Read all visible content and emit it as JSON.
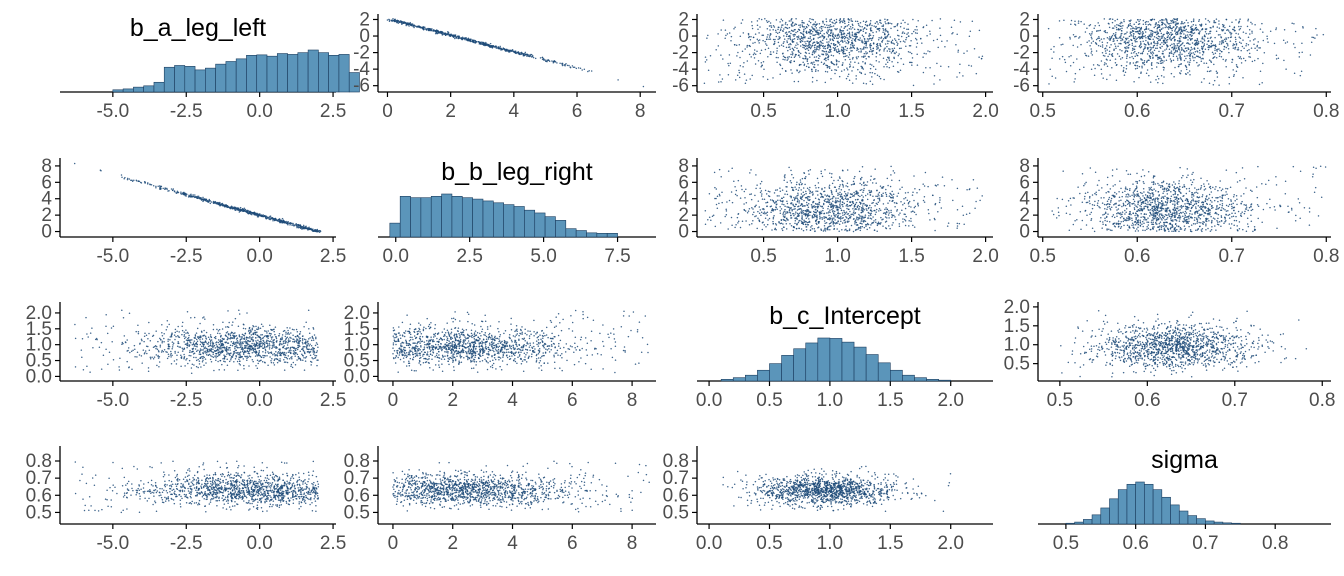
{
  "chart_data": {
    "type": "pairs",
    "grid": false,
    "colors": {
      "hist_fill": "#5b95ba",
      "hist_edge": "#1a3c5e",
      "point": "#1e4b79",
      "axis": "#000000",
      "tick_text": "#4d4d4d"
    },
    "variables": [
      "b_a_leg_left",
      "b_b_leg_right",
      "b_c_Intercept",
      "sigma"
    ],
    "panels": [
      {
        "row": 0,
        "col": 0,
        "kind": "hist",
        "title": "b_a_leg_left",
        "xlim": [
          -6.8,
          2.6
        ],
        "xticks": [
          "-5.0",
          "-2.5",
          "0.0",
          "2.5"
        ],
        "bin_start": -5.0,
        "bin_width": 0.35,
        "counts": [
          5,
          7,
          11,
          14,
          22,
          56,
          60,
          58,
          50,
          54,
          63,
          69,
          75,
          83,
          84,
          81,
          87,
          85,
          89,
          95,
          89,
          83,
          85,
          44
        ]
      },
      {
        "row": 0,
        "col": 1,
        "kind": "scatter",
        "xlim": [
          -0.3,
          8.5
        ],
        "ylim": [
          -6.4,
          2.3
        ],
        "xticks": [
          "0",
          "2",
          "4",
          "6",
          "8"
        ],
        "yticks": [
          "2",
          "0",
          "-2",
          "-4",
          "-6"
        ],
        "trend": {
          "x": [
            0.1,
            6.5
          ],
          "y": [
            2.0,
            -4.4
          ]
        },
        "x_sd": 1.6,
        "x_mean": 2.4,
        "noise": [
          0.07,
          0.07
        ],
        "n": 650,
        "extra_points": [
          {
            "x": 7.3,
            "y": -5.3
          },
          {
            "x": 8.1,
            "y": -6.1
          }
        ]
      },
      {
        "row": 0,
        "col": 2,
        "kind": "scatter",
        "xlim": [
          0.05,
          2.05
        ],
        "ylim": [
          -6.4,
          2.3
        ],
        "xticks": [
          "0.5",
          "1.0",
          "1.5",
          "2.0"
        ],
        "yticks": [
          "2",
          "0",
          "-2",
          "-4",
          "-6"
        ],
        "center": [
          0.95,
          -0.3
        ],
        "spread": [
          0.3,
          2.0
        ],
        "range_x": [
          0.1,
          1.98
        ],
        "range_y": [
          -6.0,
          2.1
        ],
        "n": 1300
      },
      {
        "row": 0,
        "col": 3,
        "kind": "scatter",
        "xlim": [
          0.495,
          0.805
        ],
        "ylim": [
          -6.4,
          2.3
        ],
        "xticks": [
          "0.5",
          "0.6",
          "0.7",
          "0.8"
        ],
        "yticks": [
          "2",
          "0",
          "-2",
          "-4",
          "-6"
        ],
        "center": [
          0.63,
          -0.3
        ],
        "spread": [
          0.045,
          2.0
        ],
        "range_x": [
          0.505,
          0.8
        ],
        "range_y": [
          -6.0,
          2.1
        ],
        "n": 1300
      },
      {
        "row": 1,
        "col": 0,
        "kind": "scatter",
        "xlim": [
          -6.8,
          2.6
        ],
        "ylim": [
          -0.3,
          8.6
        ],
        "xticks": [
          "-5.0",
          "-2.5",
          "0.0",
          "2.5"
        ],
        "yticks": [
          "8",
          "6",
          "4",
          "2",
          "0"
        ],
        "trend": {
          "x": [
            -5.6,
            2.0
          ],
          "y": [
            7.6,
            0.0
          ]
        },
        "x_sd": 1.8,
        "x_mean": -0.4,
        "noise": [
          0.07,
          0.07
        ],
        "n": 650,
        "extra_points": [
          {
            "x": -6.3,
            "y": 8.3
          }
        ]
      },
      {
        "row": 1,
        "col": 1,
        "kind": "hist",
        "title": "b_b_leg_right",
        "xlim": [
          -0.6,
          8.8
        ],
        "xticks": [
          "0.0",
          "2.5",
          "5.0",
          "7.5"
        ],
        "bin_start": -0.2,
        "bin_width": 0.35,
        "counts": [
          30,
          88,
          85,
          85,
          88,
          93,
          88,
          85,
          82,
          78,
          74,
          70,
          66,
          58,
          52,
          44,
          36,
          18,
          14,
          9,
          8,
          8
        ]
      },
      {
        "row": 1,
        "col": 2,
        "kind": "scatter",
        "xlim": [
          0.05,
          2.05
        ],
        "ylim": [
          -0.3,
          8.6
        ],
        "xticks": [
          "0.5",
          "1.0",
          "1.5",
          "2.0"
        ],
        "yticks": [
          "8",
          "6",
          "4",
          "2",
          "0"
        ],
        "center": [
          0.95,
          2.6
        ],
        "spread": [
          0.3,
          1.9
        ],
        "range_x": [
          0.1,
          1.98
        ],
        "range_y": [
          0.0,
          8.0
        ],
        "n": 1300
      },
      {
        "row": 1,
        "col": 3,
        "kind": "scatter",
        "xlim": [
          0.495,
          0.805
        ],
        "ylim": [
          -0.3,
          8.6
        ],
        "xticks": [
          "0.5",
          "0.6",
          "0.7",
          "0.8"
        ],
        "yticks": [
          "8",
          "6",
          "4",
          "2",
          "0"
        ],
        "center": [
          0.63,
          2.6
        ],
        "spread": [
          0.045,
          1.9
        ],
        "range_x": [
          0.505,
          0.8
        ],
        "range_y": [
          0.0,
          8.0
        ],
        "n": 1300
      },
      {
        "row": 2,
        "col": 0,
        "kind": "scatter",
        "xlim": [
          -6.8,
          2.6
        ],
        "ylim": [
          -0.05,
          2.25
        ],
        "xticks": [
          "-5.0",
          "-2.5",
          "0.0",
          "2.5"
        ],
        "yticks": [
          "2.0",
          "1.5",
          "1.0",
          "0.5",
          "0.0"
        ],
        "center": [
          -0.4,
          0.95
        ],
        "spread": [
          1.8,
          0.3
        ],
        "range_x": [
          -6.3,
          2.0
        ],
        "range_y": [
          0.1,
          2.1
        ],
        "n": 1300
      },
      {
        "row": 2,
        "col": 1,
        "kind": "scatter",
        "xlim": [
          -0.5,
          8.8
        ],
        "ylim": [
          -0.05,
          2.25
        ],
        "xticks": [
          "0",
          "2",
          "4",
          "6",
          "8"
        ],
        "yticks": [
          "2.0",
          "1.5",
          "1.0",
          "0.5",
          "0.0"
        ],
        "center": [
          2.4,
          0.95
        ],
        "spread": [
          1.8,
          0.3
        ],
        "range_x": [
          0.0,
          8.6
        ],
        "range_y": [
          0.1,
          2.1
        ],
        "n": 1300
      },
      {
        "row": 2,
        "col": 2,
        "kind": "hist",
        "title": "b_c_Intercept",
        "xlim": [
          -0.1,
          2.35
        ],
        "xticks": [
          "0.0",
          "0.5",
          "1.0",
          "1.5",
          "2.0"
        ],
        "bin_start": 0.1,
        "bin_width": 0.1,
        "counts": [
          4,
          8,
          14,
          26,
          42,
          62,
          78,
          92,
          104,
          103,
          94,
          82,
          64,
          44,
          26,
          14,
          8,
          4,
          2
        ]
      },
      {
        "row": 2,
        "col": 3,
        "kind": "scatter",
        "xlim": [
          0.475,
          0.81
        ],
        "ylim": [
          0.12,
          2.05
        ],
        "xticks": [
          "0.5",
          "0.6",
          "0.7",
          "0.8"
        ],
        "yticks": [
          "2.0",
          "1.5",
          "1.0",
          "0.5"
        ],
        "center": [
          0.63,
          0.95
        ],
        "spread": [
          0.045,
          0.3
        ],
        "range_x": [
          0.5,
          0.8
        ],
        "range_y": [
          0.15,
          1.95
        ],
        "n": 1300
      },
      {
        "row": 3,
        "col": 0,
        "kind": "scatter",
        "xlim": [
          -6.8,
          2.6
        ],
        "ylim": [
          0.45,
          0.87
        ],
        "xticks": [
          "-5.0",
          "-2.5",
          "0.0",
          "2.5"
        ],
        "yticks": [
          "0.8",
          "0.7",
          "0.6",
          "0.5"
        ],
        "center": [
          -0.4,
          0.63
        ],
        "spread": [
          1.8,
          0.045
        ],
        "range_x": [
          -6.3,
          2.0
        ],
        "range_y": [
          0.5,
          0.8
        ],
        "n": 1300
      },
      {
        "row": 3,
        "col": 1,
        "kind": "scatter",
        "xlim": [
          -0.5,
          8.8
        ],
        "ylim": [
          0.45,
          0.87
        ],
        "xticks": [
          "0",
          "2",
          "4",
          "6",
          "8"
        ],
        "yticks": [
          "0.8",
          "0.7",
          "0.6",
          "0.5"
        ],
        "center": [
          2.4,
          0.63
        ],
        "spread": [
          1.8,
          0.045
        ],
        "range_x": [
          0.0,
          8.6
        ],
        "range_y": [
          0.5,
          0.8
        ],
        "n": 1300
      },
      {
        "row": 3,
        "col": 2,
        "kind": "scatter",
        "xlim": [
          -0.1,
          2.35
        ],
        "ylim": [
          0.45,
          0.87
        ],
        "xticks": [
          "0.0",
          "0.5",
          "1.0",
          "1.5",
          "2.0"
        ],
        "yticks": [
          "0.8",
          "0.7",
          "0.6",
          "0.5"
        ],
        "center": [
          0.95,
          0.63
        ],
        "spread": [
          0.3,
          0.045
        ],
        "range_x": [
          0.1,
          2.0
        ],
        "range_y": [
          0.5,
          0.8
        ],
        "n": 1300
      },
      {
        "row": 3,
        "col": 3,
        "kind": "hist",
        "title": "sigma",
        "xlim": [
          0.46,
          0.88
        ],
        "xticks": [
          "0.5",
          "0.6",
          "0.7",
          "0.8"
        ],
        "bin_start": 0.5,
        "bin_width": 0.0125,
        "counts": [
          2,
          5,
          12,
          24,
          42,
          66,
          90,
          104,
          110,
          104,
          90,
          70,
          50,
          34,
          22,
          14,
          8,
          5,
          3,
          2
        ]
      }
    ]
  }
}
